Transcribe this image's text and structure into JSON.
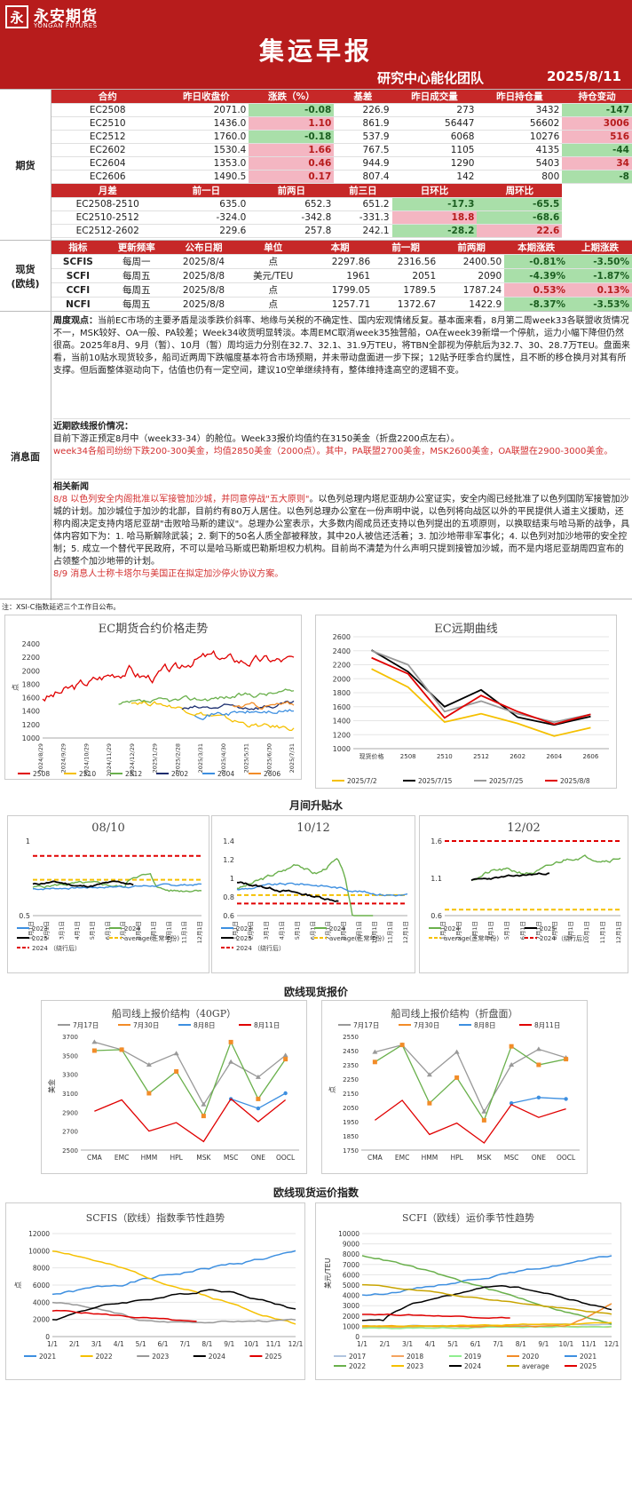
{
  "header": {
    "logo_mark": "永",
    "logo_cn": "永安期货",
    "logo_en": "YONGAN FUTURES",
    "title": "集运早报",
    "team": "研究中心能化团队",
    "date": "2025/8/11"
  },
  "futures": {
    "side": "期货",
    "headers": [
      "合约",
      "昨日收盘价",
      "涨跌（%）",
      "基差",
      "昨日成交量",
      "昨日持仓量",
      "持仓变动"
    ],
    "rows": [
      [
        "EC2508",
        "2071.0",
        "-0.08",
        "226.9",
        "273",
        "3432",
        "-147"
      ],
      [
        "EC2510",
        "1436.0",
        "1.10",
        "861.9",
        "56447",
        "56602",
        "3006"
      ],
      [
        "EC2512",
        "1760.0",
        "-0.18",
        "537.9",
        "6068",
        "10276",
        "516"
      ],
      [
        "EC2602",
        "1530.4",
        "1.66",
        "767.5",
        "1105",
        "4135",
        "-44"
      ],
      [
        "EC2604",
        "1353.0",
        "0.46",
        "944.9",
        "1290",
        "5403",
        "34"
      ],
      [
        "EC2606",
        "1490.5",
        "0.17",
        "807.4",
        "142",
        "800",
        "-8"
      ]
    ],
    "spread_headers": [
      "月差",
      "前一日",
      "前两日",
      "前三日",
      "日环比",
      "周环比"
    ],
    "spread_rows": [
      [
        "EC2508-2510",
        "635.0",
        "652.3",
        "651.2",
        "-17.3",
        "-65.5"
      ],
      [
        "EC2510-2512",
        "-324.0",
        "-342.8",
        "-331.3",
        "18.8",
        "-68.6"
      ],
      [
        "EC2512-2602",
        "229.6",
        "257.8",
        "242.1",
        "-28.2",
        "22.6"
      ]
    ]
  },
  "spot": {
    "side": "现货\n(欧线)",
    "headers": [
      "指标",
      "更新频率",
      "公布日期",
      "单位",
      "本期",
      "前一期",
      "前两期",
      "本期涨跌",
      "上期涨跌"
    ],
    "rows": [
      [
        "SCFIS",
        "每周一",
        "2025/8/4",
        "点",
        "2297.86",
        "2316.56",
        "2400.50",
        "-0.81%",
        "-3.50%"
      ],
      [
        "SCFI",
        "每周五",
        "2025/8/8",
        "美元/TEU",
        "1961",
        "2051",
        "2090",
        "-4.39%",
        "-1.87%"
      ],
      [
        "CCFI",
        "每周五",
        "2025/8/8",
        "点",
        "1799.05",
        "1789.5",
        "1787.24",
        "0.53%",
        "0.13%"
      ],
      [
        "NCFI",
        "每周五",
        "2025/8/8",
        "点",
        "1257.71",
        "1372.67",
        "1422.9",
        "-8.37%",
        "-3.53%"
      ]
    ]
  },
  "news": {
    "side": "消息面",
    "view_label": "周度观点：",
    "view_text": "当前EC市场的主要矛盾是淡季跌价斜率、地缘与关税的不确定性、国内宏观情绪反复。基本面来看，8月第二周week33各联盟收货情况不一，MSK较好、OA一般、PA较差；Week34收货明显转淡。本周EMC取消week35独营船，OA在week39新增一个停航，运力小幅下降但仍然很高。2025年8月、9月（暂）、10月（暂）周均运力分别在32.7、32.1、31.9万TEU，将TBN全部视为停航后为32.7、30、28.7万TEU。盘面来看，当前10贴水现货较多，船司近两周下跌幅度基本符合市场预期，并未带动盘面进一步下探；12贴予旺季合约属性，且不断的移仓换月对其有所支撑。但后面整体驱动向下，估值也仍有一定空间，建议10空单继续持有，整体维持逢高空的逻辑不变。",
    "quote_title": "近期欧线报价情况：",
    "quote_1": "目前下游正预定8月中（week33-34）的舱位。Week33报价均值约在3150美金（折盘2200点左右）。",
    "quote_2": "week34各船司纷纷下跌200-300美金，均值2850美金（2000点）。其中，PA联盟2700美金，MSK2600美金，OA联盟在2900-3000美金。",
    "related_title": "相关新闻",
    "n1_red": "8/8 以色列安全内阁批准以军接管加沙城，并同意停战\"五大原则\"",
    "n1_black": "。以色列总理内塔尼亚胡办公室证实，安全内阁已经批准了以色列国防军接管加沙城的计划。加沙城位于加沙的北部，目前约有80万人居住。以色列总理办公室在一份声明中说，以色列将向战区以外的平民提供人道主义援助，还称内阁决定支持内塔尼亚胡\"击败哈马斯的建议\"。总理办公室表示，大多数内阁成员还支持以色列提出的五项原则，以换取结束与哈马斯的战争，具体内容如下为：1. 哈马斯解除武装；2. 剩下的50名人质全部被释放，其中20人被信还活着；3. 加沙地带非军事化；4. 以色列对加沙地带的安全控制；5. 成立一个替代平民政府，不可以是哈马斯或巴勒斯坦权力机构。目前尚不清楚为什么声明只提到接管加沙城，而不是内塔尼亚胡周四宣布的占领整个加沙地带的计划。",
    "n2_red": "8/9 消息人士称卡塔尔与美国正在拟定加沙停火协议方案。",
    "note": "注：XSI-C指数延迟三个工作日公布。"
  },
  "colors": {
    "red": "#e00000",
    "yellow": "#f5c000",
    "green": "#6ab04c",
    "darkblue": "#1a2c6e",
    "lightblue": "#3d8fe0",
    "orange": "#f28c28",
    "gray": "#999999",
    "black": "#000000"
  },
  "charts": {
    "ec_price": {
      "title": "EC期货合约价格走势",
      "ylabel": "点",
      "yticks": [
        "2400",
        "2200",
        "2000",
        "1800",
        "1600",
        "1400",
        "1200",
        "1000"
      ],
      "xticks": [
        "2024/8/29",
        "2024/9/29",
        "2024/10/29",
        "2024/11/29",
        "2024/12/29",
        "2025/1/29",
        "2025/2/28",
        "2025/3/31",
        "2025/4/30",
        "2025/5/31",
        "2025/6/30",
        "2025/7/31"
      ],
      "legend": [
        "2508",
        "2510",
        "2512",
        "2602",
        "2604",
        "2606"
      ]
    },
    "ec_curve": {
      "title": "EC远期曲线",
      "yticks": [
        "2600",
        "2400",
        "2200",
        "2000",
        "1800",
        "1600",
        "1400",
        "1200",
        "1000"
      ],
      "xticks": [
        "现货价格",
        "2508",
        "2510",
        "2512",
        "2602",
        "2604",
        "2606"
      ],
      "legend": [
        "2025/7/2",
        "2025/7/15",
        "2025/7/25",
        "2025/8/8"
      ],
      "chart_data": {
        "type": "line",
        "categories": [
          "现货价格",
          "2508",
          "2510",
          "2512",
          "2602",
          "2604",
          "2606"
        ],
        "series": [
          {
            "name": "2025/7/2",
            "values": [
              2140,
              1880,
              1380,
              1500,
              1360,
              1180,
              1300
            ]
          },
          {
            "name": "2025/7/15",
            "values": [
              2410,
              2100,
              1600,
              1840,
              1450,
              1340,
              1460
            ]
          },
          {
            "name": "2025/7/25",
            "values": [
              2400,
              2200,
              1530,
              1680,
              1500,
              1380,
              1490
            ]
          },
          {
            "name": "2025/8/8",
            "values": [
              2300,
              2070,
              1440,
              1760,
              1530,
              1350,
              1490
            ]
          }
        ]
      }
    },
    "spread_title": "月间升贴水",
    "spread": [
      {
        "title": "08/10",
        "yticks": [
          "1",
          "0.5"
        ],
        "xticks": [
          "1月1日",
          "2月1日",
          "3月1日",
          "4月1日",
          "5月1日",
          "6月1日",
          "7月1日",
          "8月1日",
          "9月1日",
          "10月1日",
          "11月1日",
          "12月1日"
        ],
        "legend": [
          "2023",
          "2024",
          "2025",
          "average(正常年份)",
          "2024 （绕行后）"
        ]
      },
      {
        "title": "10/12",
        "yticks": [
          "1.4",
          "1.2",
          "1",
          "0.8",
          "0.6"
        ],
        "xticks": [
          "1月1日",
          "2月1日",
          "3月1日",
          "4月1日",
          "5月1日",
          "6月1日",
          "7月1日",
          "8月1日",
          "9月1日",
          "10月1日",
          "11月1日",
          "12月1日"
        ],
        "legend": [
          "2023",
          "2024",
          "2025",
          "average(正常年份)",
          "2024 （绕行后）"
        ]
      },
      {
        "title": "12/02",
        "yticks": [
          "1.6",
          "1.1",
          "0.6"
        ],
        "xticks": [
          "1月1日",
          "2月1日",
          "3月1日",
          "4月1日",
          "5月1日",
          "6月1日",
          "7月1日",
          "8月1日",
          "9月1日",
          "10月1日",
          "11月1日",
          "12月1日"
        ],
        "legend": [
          "2024",
          "2025",
          "average(正常年份)",
          "2024 （绕行后）"
        ]
      }
    ],
    "spot_title": "欧线现货报价",
    "q40": {
      "title": "船司线上报价结构（40GP）",
      "ylabel": "美金",
      "yticks": [
        "3700",
        "3500",
        "3300",
        "3100",
        "2900",
        "2700",
        "2500"
      ],
      "legend": [
        "7月17日",
        "7月30日",
        "8月8日",
        "8月11日"
      ],
      "chart_data": {
        "type": "line",
        "categories": [
          "CMA",
          "EMC",
          "HMM",
          "HPL",
          "MSK",
          "MSC",
          "ONE",
          "OOCL"
        ],
        "series": [
          {
            "name": "7月17日",
            "values": [
              3640,
              3560,
              3400,
              3520,
              2980,
              3430,
              3270,
              3500
            ]
          },
          {
            "name": "7月30日",
            "values": [
              3550,
              3560,
              3100,
              3330,
              2860,
              3640,
              3040,
              3460
            ]
          },
          {
            "name": "8月8日",
            "values": [
              null,
              null,
              null,
              null,
              null,
              3040,
              2940,
              3100
            ]
          },
          {
            "name": "8月11日",
            "values": [
              2910,
              3030,
              2700,
              2790,
              2590,
              3040,
              2800,
              3030
            ]
          }
        ]
      }
    },
    "qidx": {
      "title": "船司线上报价结构（折盘面）",
      "ylabel": "点",
      "yticks": [
        "2550",
        "2450",
        "2350",
        "2250",
        "2150",
        "2050",
        "1950",
        "1850",
        "1750"
      ],
      "legend": [
        "7月17日",
        "7月30日",
        "8月8日",
        "8月11日"
      ],
      "chart_data": {
        "type": "line",
        "categories": [
          "CMA",
          "EMC",
          "HMM",
          "HPL",
          "MSK",
          "MSC",
          "ONE",
          "OOCL"
        ],
        "series": [
          {
            "name": "7月17日",
            "values": [
              2440,
              2490,
              2280,
              2440,
              2020,
              2350,
              2460,
              2400
            ]
          },
          {
            "name": "7月30日",
            "values": [
              2370,
              2490,
              2080,
              2260,
              1960,
              2480,
              2350,
              2390
            ]
          },
          {
            "name": "8月8日",
            "values": [
              null,
              null,
              null,
              null,
              null,
              2080,
              2120,
              2110
            ]
          },
          {
            "name": "8月11日",
            "values": [
              1960,
              2100,
              1860,
              1940,
              1800,
              2070,
              1980,
              2040
            ]
          }
        ]
      }
    },
    "idx_title": "欧线现货运价指数",
    "scfis": {
      "title": "SCFIS（欧线）指数季节性趋势",
      "ylabel": "点",
      "yticks": [
        "12000",
        "10000",
        "8000",
        "6000",
        "4000",
        "2000",
        "0"
      ],
      "xticks": [
        "1/1",
        "2/1",
        "3/1",
        "4/1",
        "5/1",
        "6/1",
        "7/1",
        "8/1",
        "9/1",
        "10/1",
        "11/1",
        "12/1"
      ],
      "legend": [
        "2021",
        "2022",
        "2023",
        "2024",
        "2025"
      ]
    },
    "scfi": {
      "title": "SCFI（欧线）运价季节性趋势",
      "ylabel": "美元/TEU",
      "yticks": [
        "10000",
        "9000",
        "8000",
        "7000",
        "6000",
        "5000",
        "4000",
        "3000",
        "2000",
        "1000",
        "0"
      ],
      "xticks": [
        "1/1",
        "2/1",
        "3/1",
        "4/1",
        "5/1",
        "6/1",
        "7/1",
        "8/1",
        "9/1",
        "10/1",
        "11/1",
        "12/1"
      ],
      "legend": [
        "2017",
        "2018",
        "2019",
        "2020",
        "2021",
        "2022",
        "2023",
        "2024",
        "average",
        "2025"
      ]
    }
  }
}
